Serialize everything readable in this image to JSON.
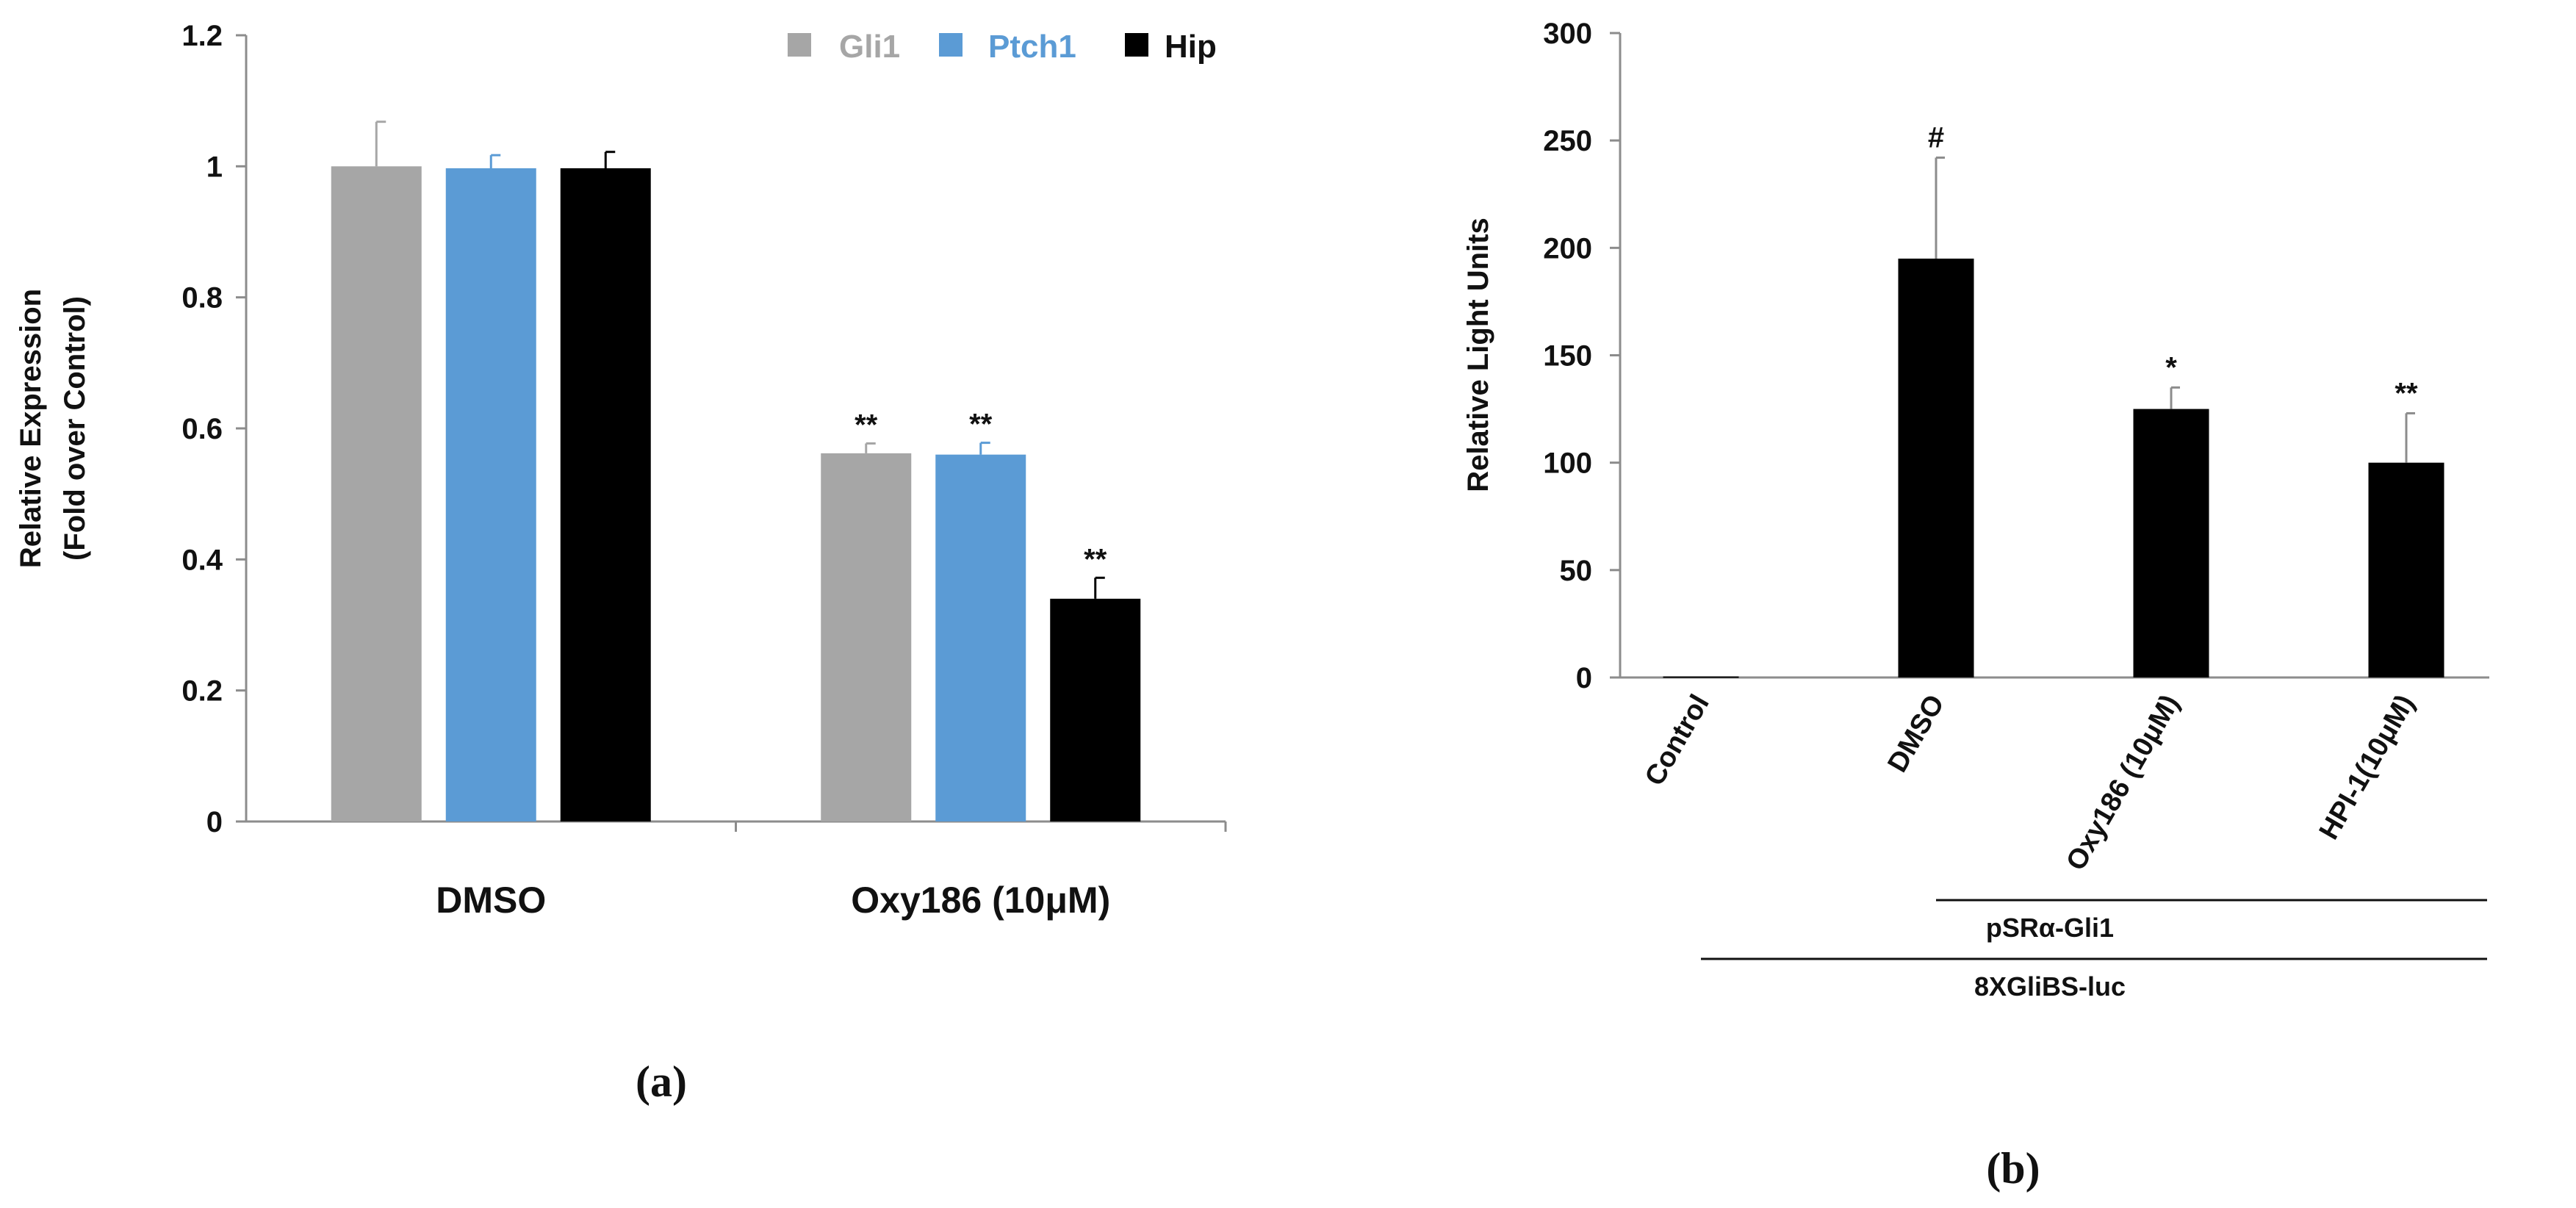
{
  "chart_data": [
    {
      "panel": "a",
      "panel_label": "(a)",
      "type": "bar",
      "ylabel_lines": [
        "Relative Expression",
        "(Fold over Control)"
      ],
      "ylim": [
        0,
        1.2
      ],
      "yticks": [
        "0",
        "0.2",
        "0.4",
        "0.6",
        "0.8",
        "1",
        "1.2"
      ],
      "ytick_values": [
        0,
        0.2,
        0.4,
        0.6,
        0.8,
        1.0,
        1.2
      ],
      "categories": [
        "DMSO",
        "Oxy186 (10μM)"
      ],
      "legend_position": "top-right",
      "series": [
        {
          "name": "Gli1",
          "color": "#a6a6a6",
          "values": [
            1.0,
            0.562
          ],
          "errors": [
            0.068,
            0.015
          ],
          "significance": [
            "",
            "**"
          ]
        },
        {
          "name": "Ptch1",
          "color": "#5b9bd5",
          "values": [
            0.997,
            0.56
          ],
          "errors": [
            0.02,
            0.018
          ],
          "significance": [
            "",
            "**"
          ]
        },
        {
          "name": "Hip",
          "color": "#000000",
          "values": [
            0.997,
            0.34
          ],
          "errors": [
            0.025,
            0.032
          ],
          "significance": [
            "",
            "**"
          ]
        }
      ]
    },
    {
      "panel": "b",
      "panel_label": "(b)",
      "type": "bar",
      "ylabel": "Relative Light Units",
      "ylim": [
        0,
        300
      ],
      "yticks": [
        "0",
        "50",
        "100",
        "150",
        "200",
        "250",
        "300"
      ],
      "ytick_values": [
        0,
        50,
        100,
        150,
        200,
        250,
        300
      ],
      "categories": [
        "Control",
        "DMSO",
        "Oxy186 (10μM)",
        "HPI-1(10μM)"
      ],
      "values": [
        0.5,
        195,
        125,
        100
      ],
      "errors": [
        0,
        47,
        10,
        23
      ],
      "significance": [
        "",
        "#",
        "*",
        "**"
      ],
      "bar_color": "#000000",
      "group_labels": [
        {
          "label": "pSRα-Gli1",
          "spans": [
            "DMSO",
            "HPI-1(10μM)"
          ]
        },
        {
          "label": "8XGliBS-luc",
          "spans": [
            "Control",
            "HPI-1(10μM)"
          ]
        }
      ]
    }
  ]
}
